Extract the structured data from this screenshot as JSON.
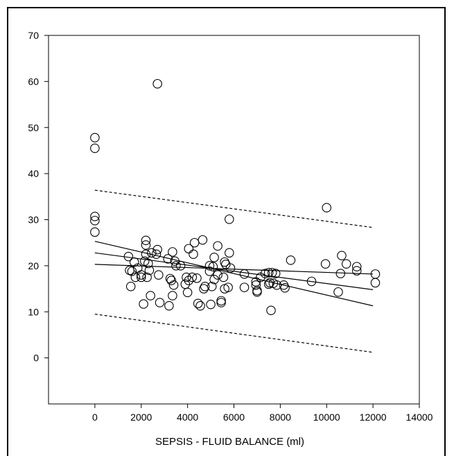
{
  "chart_data": {
    "type": "scatter",
    "title": "",
    "xlabel": "SEPSIS - FLUID BALANCE (ml)",
    "ylabel": "",
    "xlim": [
      -2000,
      14000
    ],
    "ylim": [
      -10,
      70
    ],
    "xticks": [
      0,
      2000,
      4000,
      6000,
      8000,
      10000,
      12000,
      14000
    ],
    "xtick_labels": [
      "0",
      "2000",
      "4000",
      "6000",
      "8000",
      "10000",
      "12000",
      "14000"
    ],
    "yticks": [
      0,
      10,
      20,
      30,
      40,
      50,
      60,
      70
    ],
    "ytick_labels": [
      "0",
      "10",
      "20",
      "30",
      "40",
      "50",
      "60",
      "70"
    ],
    "grid": false,
    "legend": "none",
    "marker": "open-circle",
    "points": [
      [
        0,
        47.8
      ],
      [
        0,
        45.5
      ],
      [
        0,
        30.7
      ],
      [
        0,
        29.8
      ],
      [
        0,
        27.3
      ],
      [
        2700,
        59.5
      ],
      [
        1450,
        22.0
      ],
      [
        1500,
        19.0
      ],
      [
        1550,
        15.5
      ],
      [
        1600,
        18.8
      ],
      [
        1700,
        20.8
      ],
      [
        1750,
        17.5
      ],
      [
        1850,
        19.5
      ],
      [
        2000,
        18.0
      ],
      [
        2000,
        17.5
      ],
      [
        2100,
        11.7
      ],
      [
        2150,
        21.0
      ],
      [
        2200,
        25.5
      ],
      [
        2200,
        24.5
      ],
      [
        2200,
        22.5
      ],
      [
        2250,
        17.5
      ],
      [
        2300,
        20.5
      ],
      [
        2350,
        19.0
      ],
      [
        2400,
        13.5
      ],
      [
        2450,
        22.8
      ],
      [
        2650,
        22.5
      ],
      [
        2700,
        23.5
      ],
      [
        2750,
        18.0
      ],
      [
        2800,
        12.0
      ],
      [
        3150,
        21.5
      ],
      [
        3200,
        11.3
      ],
      [
        3250,
        17.2
      ],
      [
        3300,
        16.8
      ],
      [
        3350,
        23.0
      ],
      [
        3350,
        13.5
      ],
      [
        3400,
        15.8
      ],
      [
        3450,
        21.0
      ],
      [
        3500,
        20.0
      ],
      [
        3700,
        20.0
      ],
      [
        3900,
        16.0
      ],
      [
        3950,
        17.5
      ],
      [
        4000,
        14.2
      ],
      [
        4050,
        23.7
      ],
      [
        4050,
        16.8
      ],
      [
        4200,
        17.5
      ],
      [
        4250,
        22.5
      ],
      [
        4300,
        25.0
      ],
      [
        4400,
        17.3
      ],
      [
        4450,
        11.8
      ],
      [
        4550,
        11.3
      ],
      [
        4650,
        25.6
      ],
      [
        4700,
        15.0
      ],
      [
        4750,
        15.5
      ],
      [
        4950,
        20.0
      ],
      [
        4950,
        18.8
      ],
      [
        5000,
        11.6
      ],
      [
        5050,
        15.5
      ],
      [
        5100,
        19.8
      ],
      [
        5150,
        17.0
      ],
      [
        5150,
        21.8
      ],
      [
        5300,
        24.3
      ],
      [
        5300,
        18.0
      ],
      [
        5450,
        12.4
      ],
      [
        5450,
        12.0
      ],
      [
        5550,
        17.5
      ],
      [
        5600,
        15.0
      ],
      [
        5600,
        20.8
      ],
      [
        5650,
        20.3
      ],
      [
        5750,
        15.3
      ],
      [
        5800,
        30.1
      ],
      [
        5800,
        22.8
      ],
      [
        5850,
        19.5
      ],
      [
        6450,
        18.2
      ],
      [
        6450,
        15.3
      ],
      [
        6950,
        16.5
      ],
      [
        6950,
        15.8
      ],
      [
        7000,
        14.6
      ],
      [
        7000,
        14.3
      ],
      [
        7150,
        17.5
      ],
      [
        7350,
        18.3
      ],
      [
        7500,
        18.5
      ],
      [
        7500,
        16.0
      ],
      [
        7550,
        16.3
      ],
      [
        7600,
        10.3
      ],
      [
        7650,
        18.5
      ],
      [
        7700,
        16.2
      ],
      [
        7800,
        18.3
      ],
      [
        7850,
        15.8
      ],
      [
        8150,
        15.8
      ],
      [
        8200,
        15.2
      ],
      [
        8450,
        21.2
      ],
      [
        9350,
        16.6
      ],
      [
        9950,
        20.4
      ],
      [
        10000,
        32.6
      ],
      [
        10500,
        14.3
      ],
      [
        10600,
        18.3
      ],
      [
        10650,
        22.2
      ],
      [
        10850,
        20.4
      ],
      [
        11300,
        19.8
      ],
      [
        11300,
        18.9
      ],
      [
        12100,
        18.2
      ],
      [
        12100,
        16.3
      ]
    ],
    "fit_lines": [
      {
        "style": "solid",
        "x": [
          0,
          12000
        ],
        "y": [
          22.8,
          14.8
        ]
      },
      {
        "style": "solid",
        "x": [
          0,
          12000
        ],
        "y": [
          25.3,
          11.3
        ]
      },
      {
        "style": "solid",
        "x": [
          0,
          12000
        ],
        "y": [
          20.3,
          18.2
        ]
      },
      {
        "style": "dashed",
        "x": [
          0,
          12000
        ],
        "y": [
          36.4,
          28.3
        ]
      },
      {
        "style": "dashed",
        "x": [
          0,
          12000
        ],
        "y": [
          9.5,
          1.2
        ]
      }
    ]
  }
}
